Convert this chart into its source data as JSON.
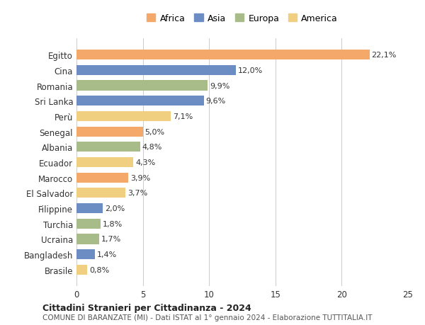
{
  "countries": [
    "Egitto",
    "Cina",
    "Romania",
    "Sri Lanka",
    "Perù",
    "Senegal",
    "Albania",
    "Ecuador",
    "Marocco",
    "El Salvador",
    "Filippine",
    "Turchia",
    "Ucraina",
    "Bangladesh",
    "Brasile"
  ],
  "values": [
    22.1,
    12.0,
    9.9,
    9.6,
    7.1,
    5.0,
    4.8,
    4.3,
    3.9,
    3.7,
    2.0,
    1.8,
    1.7,
    1.4,
    0.8
  ],
  "labels": [
    "22,1%",
    "12,0%",
    "9,9%",
    "9,6%",
    "7,1%",
    "5,0%",
    "4,8%",
    "4,3%",
    "3,9%",
    "3,7%",
    "2,0%",
    "1,8%",
    "1,7%",
    "1,4%",
    "0,8%"
  ],
  "continents": [
    "Africa",
    "Asia",
    "Europa",
    "Asia",
    "America",
    "Africa",
    "Europa",
    "America",
    "Africa",
    "America",
    "Asia",
    "Europa",
    "Europa",
    "Asia",
    "America"
  ],
  "colors": {
    "Africa": "#F4A96A",
    "Asia": "#6B8DC4",
    "Europa": "#A8BC8A",
    "America": "#F0D080"
  },
  "legend_order": [
    "Africa",
    "Asia",
    "Europa",
    "America"
  ],
  "title": "Cittadini Stranieri per Cittadinanza - 2024",
  "subtitle": "COMUNE DI BARANZATE (MI) - Dati ISTAT al 1° gennaio 2024 - Elaborazione TUTTITALIA.IT",
  "xlim": [
    0,
    25
  ],
  "xticks": [
    0,
    5,
    10,
    15,
    20,
    25
  ],
  "bg_color": "#ffffff",
  "grid_color": "#cccccc"
}
